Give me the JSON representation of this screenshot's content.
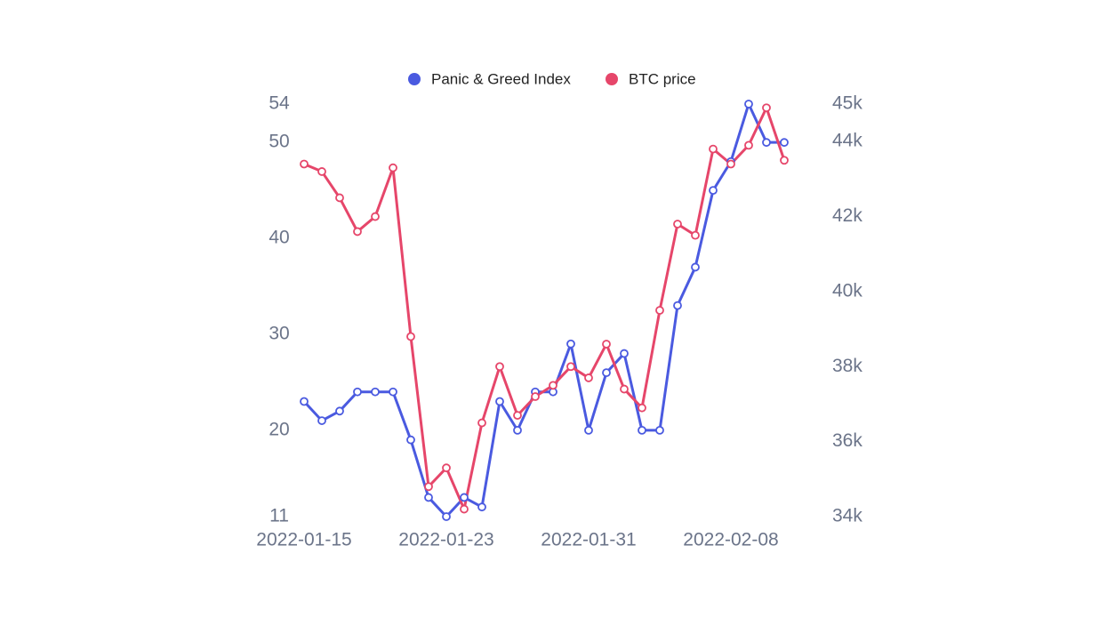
{
  "chart_data": {
    "type": "line",
    "categories": [
      "2022-01-15",
      null,
      null,
      null,
      null,
      null,
      null,
      null,
      "2022-01-23",
      null,
      null,
      null,
      null,
      null,
      null,
      null,
      "2022-01-31",
      null,
      null,
      null,
      null,
      null,
      null,
      null,
      "2022-02-08",
      null,
      null,
      null
    ],
    "series": [
      {
        "name": "Panic & Greed Index",
        "color": "#4a5ae0",
        "axis": "y",
        "values": [
          23,
          21,
          22,
          24,
          24,
          24,
          19,
          13,
          11,
          13,
          12,
          23,
          20,
          24,
          24,
          29,
          20,
          26,
          28,
          20,
          20,
          33,
          37,
          45,
          48,
          54,
          50,
          50
        ]
      },
      {
        "name": "BTC price",
        "color": "#e6466a",
        "axis": "y2",
        "values": [
          43400,
          43200,
          42500,
          41600,
          42000,
          43300,
          38800,
          34800,
          35300,
          34200,
          36500,
          38000,
          36700,
          37200,
          37500,
          38000,
          37700,
          38600,
          37400,
          36900,
          39500,
          41800,
          41500,
          43800,
          43400,
          43900,
          44900,
          43500
        ]
      }
    ],
    "ylim": [
      11,
      54
    ],
    "yticks": [
      11,
      20,
      30,
      40,
      50,
      54
    ],
    "y2lim": [
      34000,
      45000
    ],
    "y2ticks": [
      {
        "value": 34000,
        "label": "34k"
      },
      {
        "value": 36000,
        "label": "36k"
      },
      {
        "value": 38000,
        "label": "38k"
      },
      {
        "value": 40000,
        "label": "40k"
      },
      {
        "value": 42000,
        "label": "42k"
      },
      {
        "value": 44000,
        "label": "44k"
      },
      {
        "value": 45000,
        "label": "45k"
      }
    ],
    "legend": "top"
  }
}
